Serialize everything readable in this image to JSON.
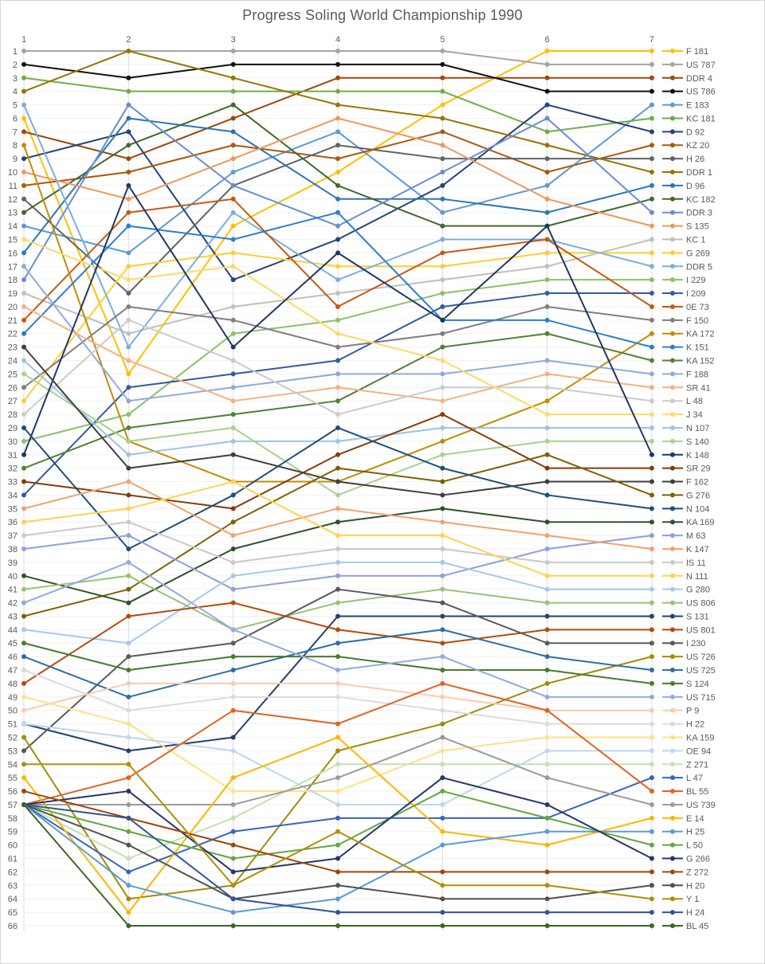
{
  "window": {
    "title": "Progress Soling World Championship 1990"
  },
  "chart_data": {
    "type": "line",
    "title": "Progress Soling World Championship 1990",
    "xlabel": "",
    "ylabel": "",
    "x_categories": [
      "1",
      "2",
      "3",
      "4",
      "5",
      "6",
      "7"
    ],
    "y_axis": {
      "min": 1,
      "max": 66,
      "inverted": true,
      "meaning": "overall rank after each race"
    },
    "grid": true,
    "legend_position": "right",
    "series": [
      {
        "name": "F 181",
        "color": "#FFC000",
        "ranks": [
          6,
          25,
          14,
          10,
          5,
          1,
          1
        ]
      },
      {
        "name": "US 787",
        "color": "#A5A5A5",
        "ranks": [
          1,
          1,
          1,
          1,
          1,
          2,
          2
        ]
      },
      {
        "name": "DDR 4",
        "color": "#9E480E",
        "ranks": [
          7,
          9,
          6,
          3,
          3,
          3,
          3
        ]
      },
      {
        "name": "US 786",
        "color": "#111111",
        "ranks": [
          2,
          3,
          2,
          2,
          2,
          4,
          4
        ]
      },
      {
        "name": "E 183",
        "color": "#5B9BD5",
        "ranks": [
          14,
          16,
          10,
          7,
          13,
          11,
          5
        ]
      },
      {
        "name": "KC 181",
        "color": "#70AD47",
        "ranks": [
          3,
          4,
          4,
          4,
          4,
          7,
          6
        ]
      },
      {
        "name": "D 92",
        "color": "#264478",
        "ranks": [
          9,
          7,
          18,
          15,
          11,
          5,
          7
        ]
      },
      {
        "name": "KZ 20",
        "color": "#AC590E",
        "ranks": [
          11,
          10,
          8,
          9,
          7,
          10,
          8
        ]
      },
      {
        "name": "H 26",
        "color": "#636363",
        "ranks": [
          12,
          19,
          11,
          8,
          9,
          9,
          9
        ]
      },
      {
        "name": "DDR 1",
        "color": "#997300",
        "ranks": [
          4,
          1,
          3,
          5,
          6,
          8,
          10
        ]
      },
      {
        "name": "D 96",
        "color": "#2E75B6",
        "ranks": [
          16,
          6,
          7,
          12,
          12,
          13,
          11
        ]
      },
      {
        "name": "KC 182",
        "color": "#43682B",
        "ranks": [
          13,
          8,
          5,
          11,
          14,
          14,
          12
        ]
      },
      {
        "name": "DDR 3",
        "color": "#698ED0",
        "ranks": [
          18,
          5,
          11,
          14,
          10,
          6,
          13
        ]
      },
      {
        "name": "S 135",
        "color": "#F1975A",
        "ranks": [
          10,
          12,
          9,
          6,
          8,
          12,
          14
        ]
      },
      {
        "name": "KC 1",
        "color": "#BFBFBF",
        "ranks": [
          19,
          22,
          20,
          19,
          18,
          17,
          15
        ]
      },
      {
        "name": "G 269",
        "color": "#FFCD33",
        "ranks": [
          27,
          17,
          16,
          17,
          17,
          16,
          16
        ]
      },
      {
        "name": "DDR 5",
        "color": "#7CAFDD",
        "ranks": [
          5,
          23,
          13,
          18,
          15,
          15,
          17
        ]
      },
      {
        "name": "I 229",
        "color": "#8CC168",
        "ranks": [
          30,
          28,
          22,
          21,
          19,
          18,
          18
        ]
      },
      {
        "name": "I 209",
        "color": "#335AA1",
        "ranks": [
          34,
          26,
          25,
          24,
          20,
          19,
          19
        ]
      },
      {
        "name": "0E 73",
        "color": "#C55A11",
        "ranks": [
          21,
          13,
          12,
          20,
          16,
          15,
          20
        ]
      },
      {
        "name": "F 150",
        "color": "#7F7F7F",
        "ranks": [
          26,
          20,
          21,
          23,
          22,
          20,
          21
        ]
      },
      {
        "name": "KA 172",
        "color": "#BF8F00",
        "ranks": [
          8,
          30,
          33,
          33,
          30,
          27,
          22
        ]
      },
      {
        "name": "K 151",
        "color": "#2D7DD2",
        "ranks": [
          22,
          14,
          15,
          13,
          21,
          21,
          23
        ]
      },
      {
        "name": "KA 152",
        "color": "#538135",
        "ranks": [
          32,
          29,
          28,
          27,
          23,
          22,
          24
        ]
      },
      {
        "name": "F 188",
        "color": "#8FAADC",
        "ranks": [
          17,
          27,
          26,
          25,
          25,
          24,
          25
        ]
      },
      {
        "name": "SR 41",
        "color": "#F4B183",
        "ranks": [
          20,
          24,
          27,
          26,
          27,
          25,
          26
        ]
      },
      {
        "name": "L 48",
        "color": "#CBCBCB",
        "ranks": [
          28,
          21,
          24,
          28,
          26,
          26,
          27
        ]
      },
      {
        "name": "J 34",
        "color": "#FFD966",
        "ranks": [
          15,
          18,
          17,
          22,
          24,
          28,
          28
        ]
      },
      {
        "name": "N 107",
        "color": "#9DC3E6",
        "ranks": [
          24,
          31,
          30,
          30,
          29,
          29,
          29
        ]
      },
      {
        "name": "S 140",
        "color": "#A9D18E",
        "ranks": [
          25,
          30,
          29,
          34,
          31,
          30,
          30
        ]
      },
      {
        "name": "K 148",
        "color": "#1F3864",
        "ranks": [
          31,
          11,
          23,
          16,
          21,
          14,
          31
        ]
      },
      {
        "name": "SR 29",
        "color": "#843C0C",
        "ranks": [
          33,
          34,
          35,
          31,
          28,
          32,
          32
        ]
      },
      {
        "name": "F 162",
        "color": "#404040",
        "ranks": [
          23,
          32,
          31,
          33,
          34,
          33,
          33
        ]
      },
      {
        "name": "G 276",
        "color": "#7F6000",
        "ranks": [
          43,
          41,
          36,
          32,
          33,
          31,
          34
        ]
      },
      {
        "name": "N 104",
        "color": "#1F4E79",
        "ranks": [
          29,
          38,
          34,
          29,
          32,
          34,
          35
        ]
      },
      {
        "name": "KA 169",
        "color": "#2E5229",
        "ranks": [
          40,
          42,
          38,
          36,
          35,
          36,
          36
        ]
      },
      {
        "name": "M 63",
        "color": "#8EA0DC",
        "ranks": [
          38,
          37,
          41,
          40,
          40,
          38,
          37
        ]
      },
      {
        "name": "K 147",
        "color": "#F2A36C",
        "ranks": [
          35,
          33,
          37,
          35,
          36,
          37,
          38
        ]
      },
      {
        "name": "IS 11",
        "color": "#C9C9C9",
        "ranks": [
          37,
          36,
          39,
          38,
          38,
          39,
          39
        ]
      },
      {
        "name": "N 111",
        "color": "#FFD34D",
        "ranks": [
          36,
          35,
          33,
          37,
          37,
          40,
          40
        ]
      },
      {
        "name": "G 280",
        "color": "#A8C8EC",
        "ranks": [
          44,
          45,
          40,
          39,
          39,
          41,
          41
        ]
      },
      {
        "name": "US 806",
        "color": "#97C475",
        "ranks": [
          41,
          40,
          44,
          42,
          41,
          42,
          42
        ]
      },
      {
        "name": "S 131",
        "color": "#24416F",
        "ranks": [
          51,
          53,
          52,
          43,
          43,
          43,
          43
        ]
      },
      {
        "name": "US 801",
        "color": "#B84A08",
        "ranks": [
          48,
          43,
          42,
          44,
          45,
          44,
          44
        ]
      },
      {
        "name": "I 230",
        "color": "#595959",
        "ranks": [
          53,
          46,
          45,
          41,
          42,
          45,
          45
        ]
      },
      {
        "name": "US 726",
        "color": "#A38B00",
        "ranks": [
          52,
          64,
          63,
          53,
          51,
          48,
          46
        ]
      },
      {
        "name": "US 725",
        "color": "#2E6DA4",
        "ranks": [
          46,
          49,
          47,
          45,
          44,
          46,
          47
        ]
      },
      {
        "name": "S 124",
        "color": "#4A7A2C",
        "ranks": [
          45,
          47,
          46,
          46,
          47,
          47,
          48
        ]
      },
      {
        "name": "US 715",
        "color": "#93ACDE",
        "ranks": [
          42,
          39,
          44,
          47,
          46,
          49,
          49
        ]
      },
      {
        "name": "P 9",
        "color": "#F8CBAD",
        "ranks": [
          50,
          48,
          48,
          48,
          49,
          50,
          50
        ]
      },
      {
        "name": "H 22",
        "color": "#DBDBDB",
        "ranks": [
          47,
          50,
          49,
          49,
          50,
          51,
          51
        ]
      },
      {
        "name": "KA 159",
        "color": "#FFE183",
        "ranks": [
          49,
          51,
          56,
          56,
          53,
          52,
          52
        ]
      },
      {
        "name": "OE 94",
        "color": "#BDD7EE",
        "ranks": [
          51,
          52,
          53,
          57,
          57,
          53,
          53
        ]
      },
      {
        "name": "Z 271",
        "color": "#C5E0B4",
        "ranks": [
          57,
          61,
          58,
          54,
          54,
          54,
          54
        ]
      },
      {
        "name": "L 47",
        "color": "#3465C0",
        "ranks": [
          57,
          62,
          59,
          58,
          58,
          58,
          55
        ]
      },
      {
        "name": "BL 55",
        "color": "#E2621F",
        "ranks": [
          57,
          55,
          50,
          51,
          48,
          50,
          56
        ]
      },
      {
        "name": "US 739",
        "color": "#9B9B9B",
        "ranks": [
          57,
          57,
          57,
          55,
          52,
          55,
          57
        ]
      },
      {
        "name": "E 14",
        "color": "#FFB500",
        "ranks": [
          55,
          65,
          55,
          52,
          59,
          60,
          58
        ]
      },
      {
        "name": "H 25",
        "color": "#5B9BD5",
        "ranks": [
          57,
          63,
          65,
          64,
          60,
          59,
          59
        ]
      },
      {
        "name": "L 50",
        "color": "#62A83E",
        "ranks": [
          57,
          59,
          61,
          60,
          56,
          58,
          60
        ]
      },
      {
        "name": "G 266",
        "color": "#26356E",
        "ranks": [
          57,
          56,
          62,
          61,
          55,
          57,
          61
        ]
      },
      {
        "name": "Z 272",
        "color": "#9C4708",
        "ranks": [
          56,
          58,
          60,
          62,
          62,
          62,
          62
        ]
      },
      {
        "name": "H 20",
        "color": "#515151",
        "ranks": [
          57,
          60,
          64,
          63,
          64,
          64,
          63
        ]
      },
      {
        "name": "Y 1",
        "color": "#B38F00",
        "ranks": [
          54,
          54,
          63,
          59,
          63,
          63,
          64
        ]
      },
      {
        "name": "H 24",
        "color": "#2F5597",
        "ranks": [
          57,
          58,
          64,
          65,
          65,
          65,
          65
        ]
      },
      {
        "name": "BL 45",
        "color": "#3F6428",
        "ranks": [
          57,
          66,
          66,
          66,
          66,
          66,
          66
        ]
      }
    ]
  },
  "style_tokens": {
    "axis_text_color": "#595959",
    "title_color": "#595959",
    "h_gridline_color": "#F1F1F1",
    "v_gridline_color": "#DCDCDC",
    "frame_border_color": "#D5D5D5",
    "background": "#FFFFFF"
  }
}
